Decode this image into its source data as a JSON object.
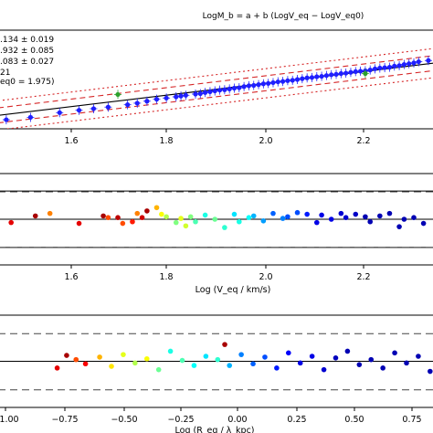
{
  "chart_data": [
    {
      "type": "scatter",
      "title": "LogM_b = a + b (LogV_eq − LogV_eq0)",
      "xlabel": "",
      "ylabel": "",
      "xlim": [
        1.4333,
        2.3333
      ],
      "ylim": [
        -1.25,
        1.25
      ],
      "x_ticks": [
        "1.6",
        "1.8",
        "2.0",
        "2.2"
      ],
      "annotations": [
        ".134 ± 0.019",
        ".932 ± 0.085",
        ".083 ± 0.027",
        "21",
        "eq0 = 1.975)"
      ],
      "grid": false,
      "fit_lines": {
        "fit_slope": 1.475,
        "band_offsets": [
          0.19,
          0.37
        ],
        "band_colors": [
          "#000000",
          "#d62728"
        ]
      },
      "series": [
        {
          "color": "#1f1fff",
          "points": [
            [
              1.45,
              -1.02
            ],
            [
              1.5,
              -0.96
            ],
            [
              1.56,
              -0.84
            ],
            [
              1.6,
              -0.78
            ],
            [
              1.63,
              -0.74
            ],
            [
              1.66,
              -0.7
            ],
            [
              1.7,
              -0.64
            ],
            [
              1.72,
              -0.6
            ],
            [
              1.74,
              -0.55
            ],
            [
              1.76,
              -0.5
            ],
            [
              1.78,
              -0.47
            ],
            [
              1.8,
              -0.44
            ],
            [
              1.81,
              -0.42
            ],
            [
              1.82,
              -0.4
            ],
            [
              1.84,
              -0.37
            ],
            [
              1.85,
              -0.36
            ],
            [
              1.86,
              -0.33
            ],
            [
              1.87,
              -0.31
            ],
            [
              1.88,
              -0.29
            ],
            [
              1.89,
              -0.27
            ],
            [
              1.9,
              -0.26
            ],
            [
              1.91,
              -0.24
            ],
            [
              1.92,
              -0.22
            ],
            [
              1.93,
              -0.21
            ],
            [
              1.94,
              -0.18
            ],
            [
              1.95,
              -0.16
            ],
            [
              1.96,
              -0.15
            ],
            [
              1.97,
              -0.13
            ],
            [
              1.98,
              -0.11
            ],
            [
              1.99,
              -0.1
            ],
            [
              2.0,
              -0.08
            ],
            [
              2.01,
              -0.06
            ],
            [
              2.02,
              -0.05
            ],
            [
              2.03,
              -0.03
            ],
            [
              2.04,
              -0.02
            ],
            [
              2.05,
              0.0
            ],
            [
              2.06,
              0.02
            ],
            [
              2.07,
              0.04
            ],
            [
              2.08,
              0.05
            ],
            [
              2.09,
              0.07
            ],
            [
              2.1,
              0.08
            ],
            [
              2.11,
              0.1
            ],
            [
              2.12,
              0.12
            ],
            [
              2.13,
              0.13
            ],
            [
              2.14,
              0.15
            ],
            [
              2.15,
              0.16
            ],
            [
              2.16,
              0.18
            ],
            [
              2.17,
              0.2
            ],
            [
              2.18,
              0.21
            ],
            [
              2.19,
              0.22
            ],
            [
              2.2,
              0.24
            ],
            [
              2.21,
              0.27
            ],
            [
              2.22,
              0.29
            ],
            [
              2.23,
              0.3
            ],
            [
              2.24,
              0.31
            ],
            [
              2.25,
              0.34
            ],
            [
              2.26,
              0.35
            ],
            [
              2.27,
              0.38
            ],
            [
              2.28,
              0.4
            ],
            [
              2.29,
              0.42
            ],
            [
              2.3,
              0.45
            ],
            [
              2.32,
              0.48
            ]
          ]
        },
        {
          "color": "#2ca02c",
          "points": [
            [
              1.68,
              -0.38
            ],
            [
              2.19,
              0.15
            ]
          ]
        }
      ]
    },
    {
      "type": "scatter",
      "xlabel": "Log (V_eq / km/s)",
      "ylabel": "",
      "xlim": [
        1.4333,
        2.3333
      ],
      "ylim": [
        -0.55,
        0.55
      ],
      "x_ticks": [
        "1.6",
        "1.8",
        "2.0",
        "2.2"
      ],
      "colormap": "jet",
      "grid": false,
      "reference_lines": {
        "solid": [
          0.34,
          0.0,
          -0.34
        ],
        "dashed": [
          0.33,
          -0.34
        ]
      },
      "points": [
        [
          1.46,
          -0.04,
          0.9
        ],
        [
          1.51,
          0.04,
          0.96
        ],
        [
          1.54,
          0.07,
          0.75
        ],
        [
          1.6,
          -0.05,
          0.9
        ],
        [
          1.65,
          0.04,
          0.96
        ],
        [
          1.66,
          0.02,
          0.8
        ],
        [
          1.68,
          0.02,
          0.94
        ],
        [
          1.69,
          -0.05,
          0.8
        ],
        [
          1.71,
          -0.03,
          0.85
        ],
        [
          1.72,
          0.07,
          0.75
        ],
        [
          1.73,
          0.02,
          0.92
        ],
        [
          1.74,
          0.1,
          0.96
        ],
        [
          1.76,
          0.14,
          0.7
        ],
        [
          1.77,
          0.06,
          0.62
        ],
        [
          1.78,
          0.03,
          0.55
        ],
        [
          1.8,
          -0.04,
          0.5
        ],
        [
          1.81,
          0.01,
          0.6
        ],
        [
          1.82,
          -0.08,
          0.58
        ],
        [
          1.83,
          0.03,
          0.5
        ],
        [
          1.84,
          -0.03,
          0.45
        ],
        [
          1.86,
          0.05,
          0.4
        ],
        [
          1.88,
          0.0,
          0.48
        ],
        [
          1.9,
          -0.1,
          0.42
        ],
        [
          1.92,
          0.06,
          0.35
        ],
        [
          1.93,
          -0.03,
          0.4
        ],
        [
          1.95,
          0.02,
          0.38
        ],
        [
          1.96,
          0.04,
          0.3
        ],
        [
          1.98,
          -0.02,
          0.28
        ],
        [
          2.0,
          0.07,
          0.22
        ],
        [
          2.02,
          0.01,
          0.25
        ],
        [
          2.03,
          0.03,
          0.2
        ],
        [
          2.05,
          0.08,
          0.2
        ],
        [
          2.07,
          0.06,
          0.15
        ],
        [
          2.09,
          -0.04,
          0.1
        ],
        [
          2.1,
          0.05,
          0.1
        ],
        [
          2.12,
          0.0,
          0.1
        ],
        [
          2.14,
          0.07,
          0.08
        ],
        [
          2.15,
          0.02,
          0.08
        ],
        [
          2.17,
          0.06,
          0.07
        ],
        [
          2.19,
          0.03,
          0.05
        ],
        [
          2.2,
          -0.03,
          0.05
        ],
        [
          2.22,
          0.04,
          0.05
        ],
        [
          2.24,
          0.07,
          0.05
        ],
        [
          2.26,
          -0.09,
          0.05
        ],
        [
          2.27,
          0.0,
          0.05
        ],
        [
          2.29,
          0.02,
          0.05
        ],
        [
          2.31,
          -0.05,
          0.05
        ]
      ]
    },
    {
      "type": "scatter",
      "xlabel": "Log (R_eq / λ_kpc)",
      "ylabel": "",
      "xlim": [
        -1.03,
        0.82
      ],
      "ylim": [
        -0.55,
        0.55
      ],
      "x_ticks": [
        "−1.00",
        "−0.75",
        "−0.50",
        "−0.25",
        "0.00",
        "0.25",
        "0.50",
        "0.75"
      ],
      "colormap": "jet",
      "grid": false,
      "reference_lines": {
        "solid": [
          0.0
        ],
        "dashed": [
          0.33,
          -0.34
        ]
      },
      "points": [
        [
          -0.78,
          -0.08,
          0.9
        ],
        [
          -0.74,
          0.07,
          0.96
        ],
        [
          -0.7,
          0.02,
          0.8
        ],
        [
          -0.66,
          -0.03,
          0.88
        ],
        [
          -0.6,
          0.05,
          0.7
        ],
        [
          -0.55,
          -0.06,
          0.65
        ],
        [
          -0.5,
          0.08,
          0.6
        ],
        [
          -0.45,
          -0.02,
          0.55
        ],
        [
          -0.4,
          0.03,
          0.62
        ],
        [
          -0.35,
          -0.1,
          0.48
        ],
        [
          -0.3,
          0.12,
          0.4
        ],
        [
          -0.25,
          0.01,
          0.45
        ],
        [
          -0.2,
          -0.05,
          0.38
        ],
        [
          -0.15,
          0.06,
          0.35
        ],
        [
          -0.1,
          0.02,
          0.42
        ],
        [
          -0.07,
          0.2,
          0.96
        ],
        [
          -0.05,
          -0.05,
          0.3
        ],
        [
          0.0,
          0.08,
          0.25
        ],
        [
          0.05,
          -0.03,
          0.22
        ],
        [
          0.1,
          0.05,
          0.2
        ],
        [
          0.15,
          -0.08,
          0.15
        ],
        [
          0.2,
          0.1,
          0.12
        ],
        [
          0.25,
          -0.02,
          0.1
        ],
        [
          0.3,
          0.06,
          0.1
        ],
        [
          0.35,
          -0.1,
          0.08
        ],
        [
          0.4,
          0.04,
          0.06
        ],
        [
          0.45,
          0.12,
          0.05
        ],
        [
          0.5,
          -0.04,
          0.05
        ],
        [
          0.55,
          0.02,
          0.05
        ],
        [
          0.6,
          -0.08,
          0.05
        ],
        [
          0.65,
          0.1,
          0.05
        ],
        [
          0.7,
          -0.02,
          0.05
        ],
        [
          0.75,
          0.06,
          0.05
        ],
        [
          0.8,
          -0.12,
          0.05
        ]
      ]
    }
  ]
}
